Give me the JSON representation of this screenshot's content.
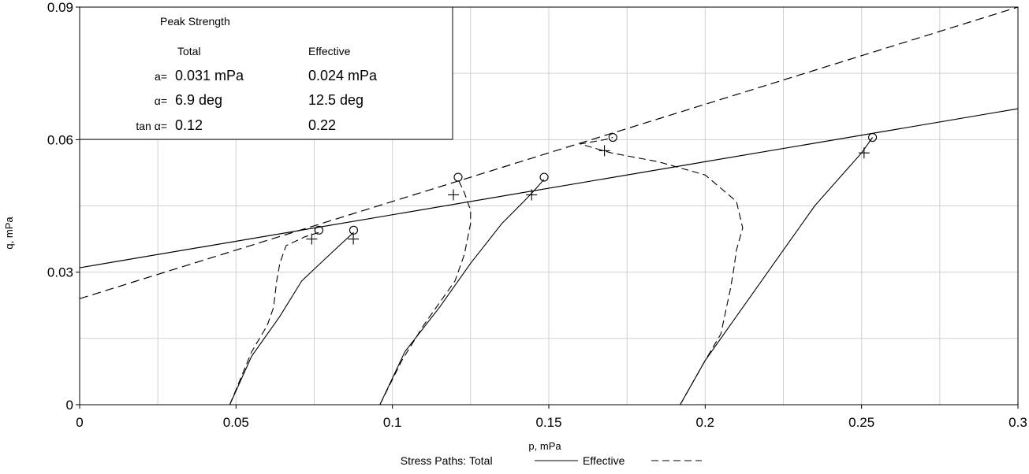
{
  "chart_data": {
    "type": "line",
    "xlabel": "p, mPa",
    "ylabel": "q, mPa",
    "xlim": [
      0,
      0.3
    ],
    "ylim": [
      0,
      0.09
    ],
    "xticks": [
      "0",
      "0.05",
      "0.1",
      "0.15",
      "0.2",
      "0.25",
      "0.3"
    ],
    "yticks": [
      "0",
      "0.03",
      "0.06",
      "0.09"
    ],
    "grid": true,
    "caption": {
      "prefix": "Stress Paths: ",
      "total_label": "Total",
      "effective_label": "Effective"
    },
    "table": {
      "title": "Peak Strength",
      "col1": "Total",
      "col2": "Effective",
      "rows": [
        {
          "label": "a=",
          "total": "0.031 mPa",
          "effective": "0.024 mPa"
        },
        {
          "label": "α=",
          "total": "6.9 deg",
          "effective": "12.5 deg"
        },
        {
          "label": "tan α=",
          "total": "0.12",
          "effective": "0.22"
        }
      ]
    },
    "envelopes": {
      "total": {
        "a": 0.031,
        "tan_alpha": 0.12
      },
      "effective": {
        "a": 0.024,
        "tan_alpha": 0.22
      }
    },
    "series": [
      {
        "style": "total",
        "points": [
          [
            0.048,
            0
          ],
          [
            0.055,
            0.011
          ],
          [
            0.064,
            0.02
          ],
          [
            0.071,
            0.028
          ],
          [
            0.077,
            0.032
          ],
          [
            0.083,
            0.036
          ],
          [
            0.0876,
            0.039
          ]
        ]
      },
      {
        "style": "effective",
        "points": [
          [
            0.048,
            0
          ],
          [
            0.055,
            0.012
          ],
          [
            0.06,
            0.018
          ],
          [
            0.062,
            0.022
          ],
          [
            0.063,
            0.028
          ],
          [
            0.064,
            0.032
          ],
          [
            0.066,
            0.036
          ],
          [
            0.072,
            0.038
          ],
          [
            0.0765,
            0.039
          ]
        ]
      },
      {
        "style": "total",
        "points": [
          [
            0.096,
            0
          ],
          [
            0.104,
            0.012
          ],
          [
            0.115,
            0.022
          ],
          [
            0.125,
            0.032
          ],
          [
            0.135,
            0.041
          ],
          [
            0.142,
            0.046
          ],
          [
            0.146,
            0.049
          ],
          [
            0.1485,
            0.051
          ]
        ]
      },
      {
        "style": "effective",
        "points": [
          [
            0.096,
            0
          ],
          [
            0.103,
            0.01
          ],
          [
            0.11,
            0.018
          ],
          [
            0.116,
            0.024
          ],
          [
            0.12,
            0.028
          ],
          [
            0.123,
            0.034
          ],
          [
            0.125,
            0.041
          ],
          [
            0.125,
            0.044
          ],
          [
            0.123,
            0.048
          ],
          [
            0.121,
            0.051
          ]
        ]
      },
      {
        "style": "total",
        "points": [
          [
            0.192,
            0
          ],
          [
            0.2,
            0.01
          ],
          [
            0.212,
            0.022
          ],
          [
            0.225,
            0.035
          ],
          [
            0.235,
            0.045
          ],
          [
            0.245,
            0.053
          ],
          [
            0.25,
            0.057
          ],
          [
            0.2535,
            0.0605
          ]
        ]
      },
      {
        "style": "effective",
        "points": [
          [
            0.192,
            0
          ],
          [
            0.2,
            0.01
          ],
          [
            0.205,
            0.016
          ],
          [
            0.2065,
            0.021
          ],
          [
            0.208,
            0.026
          ],
          [
            0.209,
            0.03
          ],
          [
            0.21,
            0.035
          ],
          [
            0.212,
            0.04
          ],
          [
            0.21,
            0.046
          ],
          [
            0.2,
            0.052
          ],
          [
            0.185,
            0.055
          ],
          [
            0.17,
            0.057
          ],
          [
            0.16,
            0.059
          ],
          [
            0.168,
            0.06
          ],
          [
            0.1705,
            0.0605
          ]
        ]
      }
    ],
    "peak_markers_circle": [
      [
        0.0876,
        0.0395
      ],
      [
        0.0765,
        0.0395
      ],
      [
        0.1485,
        0.0515
      ],
      [
        0.121,
        0.0515
      ],
      [
        0.2535,
        0.0605
      ],
      [
        0.1705,
        0.0605
      ]
    ],
    "peak_markers_plus": [
      [
        0.0875,
        0.0375
      ],
      [
        0.0742,
        0.0375
      ],
      [
        0.1445,
        0.0475
      ],
      [
        0.1195,
        0.0475
      ],
      [
        0.2508,
        0.057
      ],
      [
        0.1678,
        0.0575
      ]
    ]
  }
}
